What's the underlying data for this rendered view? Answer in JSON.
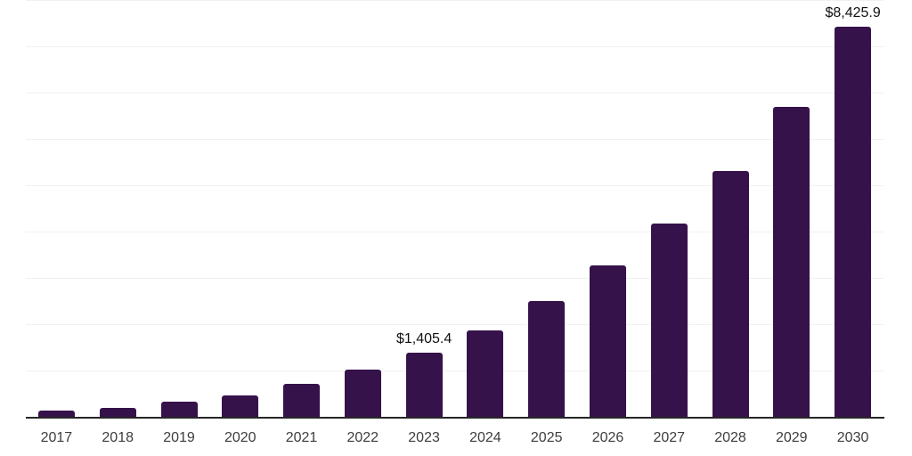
{
  "chart_data": {
    "type": "bar",
    "title": "",
    "xlabel": "",
    "ylabel": "",
    "categories": [
      "2017",
      "2018",
      "2019",
      "2020",
      "2021",
      "2022",
      "2023",
      "2024",
      "2025",
      "2026",
      "2027",
      "2028",
      "2029",
      "2030"
    ],
    "values": [
      150,
      215,
      345,
      485,
      735,
      1030,
      1405.4,
      1880,
      2515,
      3280,
      4190,
      5310,
      6700,
      8425.9
    ],
    "annotations": [
      {
        "category": "2023",
        "label": "$1,405.4"
      },
      {
        "category": "2030",
        "label": "$8,425.9"
      }
    ],
    "ylim": [
      0,
      9000
    ],
    "gridline_step": 1000,
    "grid": true,
    "legend": false,
    "y_axis_labels_visible": false,
    "colors": {
      "bar": "#36124B",
      "axis_line": "#262626",
      "gridline": "#f0f0f0",
      "tick_label": "#3d3d3d",
      "data_label": "#111111",
      "background": "#ffffff"
    }
  }
}
